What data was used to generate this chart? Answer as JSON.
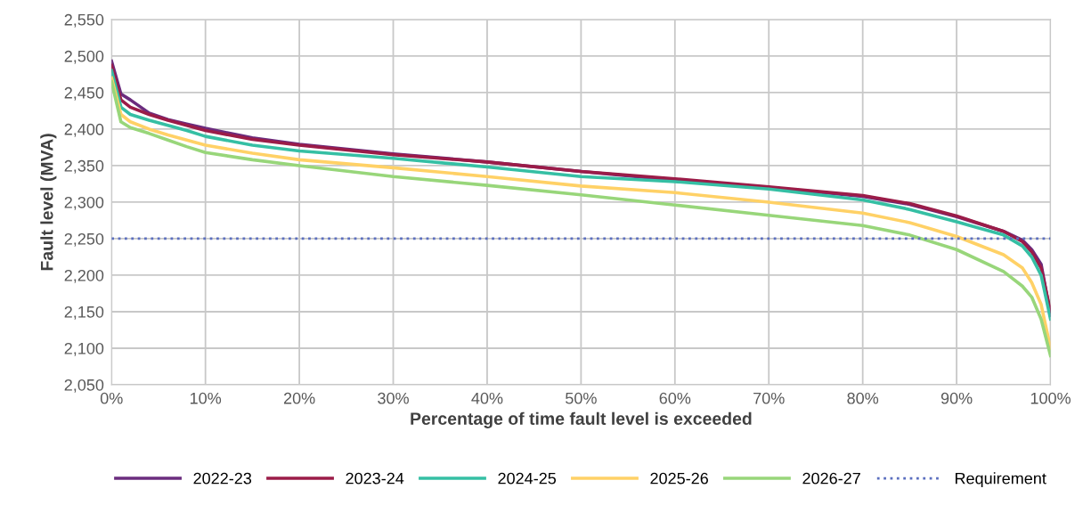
{
  "chart_data": {
    "type": "line",
    "xlabel": "Percentage of time fault level is exceeded",
    "ylabel": "Fault level (MVA)",
    "x": [
      0,
      1,
      2,
      4,
      6,
      8,
      10,
      15,
      20,
      30,
      40,
      50,
      60,
      70,
      80,
      85,
      90,
      95,
      97,
      98,
      99,
      100
    ],
    "series": [
      {
        "name": "2022-23",
        "color": "#6b2c7e",
        "values": [
          2493,
          2448,
          2440,
          2422,
          2413,
          2407,
          2401,
          2388,
          2379,
          2366,
          2355,
          2342,
          2330,
          2320,
          2308,
          2297,
          2280,
          2260,
          2248,
          2235,
          2215,
          2145
        ]
      },
      {
        "name": "2023-24",
        "color": "#9b1c48",
        "values": [
          2487,
          2440,
          2430,
          2420,
          2412,
          2405,
          2398,
          2386,
          2378,
          2365,
          2355,
          2342,
          2332,
          2321,
          2309,
          2298,
          2281,
          2260,
          2246,
          2232,
          2210,
          2150
        ]
      },
      {
        "name": "2024-25",
        "color": "#35bfa4",
        "values": [
          2480,
          2430,
          2420,
          2412,
          2405,
          2398,
          2390,
          2378,
          2370,
          2360,
          2348,
          2335,
          2328,
          2318,
          2303,
          2290,
          2273,
          2255,
          2240,
          2225,
          2200,
          2140
        ]
      },
      {
        "name": "2025-26",
        "color": "#ffd166",
        "values": [
          2470,
          2420,
          2410,
          2400,
          2392,
          2385,
          2378,
          2367,
          2358,
          2347,
          2335,
          2322,
          2313,
          2300,
          2285,
          2272,
          2253,
          2228,
          2210,
          2190,
          2160,
          2100
        ]
      },
      {
        "name": "2026-27",
        "color": "#98d67a",
        "values": [
          2465,
          2410,
          2402,
          2394,
          2385,
          2376,
          2368,
          2358,
          2350,
          2335,
          2323,
          2310,
          2296,
          2282,
          2268,
          2255,
          2235,
          2205,
          2185,
          2170,
          2140,
          2090
        ]
      },
      {
        "name": "Requirement",
        "color": "#5b6fbf",
        "line_style": "dotted",
        "x": [
          0,
          100
        ],
        "values": [
          2250,
          2250
        ]
      }
    ],
    "xlim": [
      0,
      100
    ],
    "xticks": [
      {
        "value": 0,
        "label": "0%"
      },
      {
        "value": 10,
        "label": "10%"
      },
      {
        "value": 20,
        "label": "20%"
      },
      {
        "value": 30,
        "label": "30%"
      },
      {
        "value": 40,
        "label": "40%"
      },
      {
        "value": 50,
        "label": "50%"
      },
      {
        "value": 60,
        "label": "60%"
      },
      {
        "value": 70,
        "label": "70%"
      },
      {
        "value": 80,
        "label": "80%"
      },
      {
        "value": 90,
        "label": "90%"
      },
      {
        "value": 100,
        "label": "100%"
      }
    ],
    "ylim": [
      2050,
      2550
    ],
    "yticks": [
      {
        "value": 2050,
        "label": "2,050"
      },
      {
        "value": 2100,
        "label": "2,100"
      },
      {
        "value": 2150,
        "label": "2,150"
      },
      {
        "value": 2200,
        "label": "2,200"
      },
      {
        "value": 2250,
        "label": "2,250"
      },
      {
        "value": 2300,
        "label": "2,300"
      },
      {
        "value": 2350,
        "label": "2,350"
      },
      {
        "value": 2400,
        "label": "2,400"
      },
      {
        "value": 2450,
        "label": "2,450"
      },
      {
        "value": 2500,
        "label": "2,500"
      },
      {
        "value": 2550,
        "label": "2,550"
      }
    ],
    "grid": true,
    "legend": "bottom",
    "line_style": "solid"
  }
}
